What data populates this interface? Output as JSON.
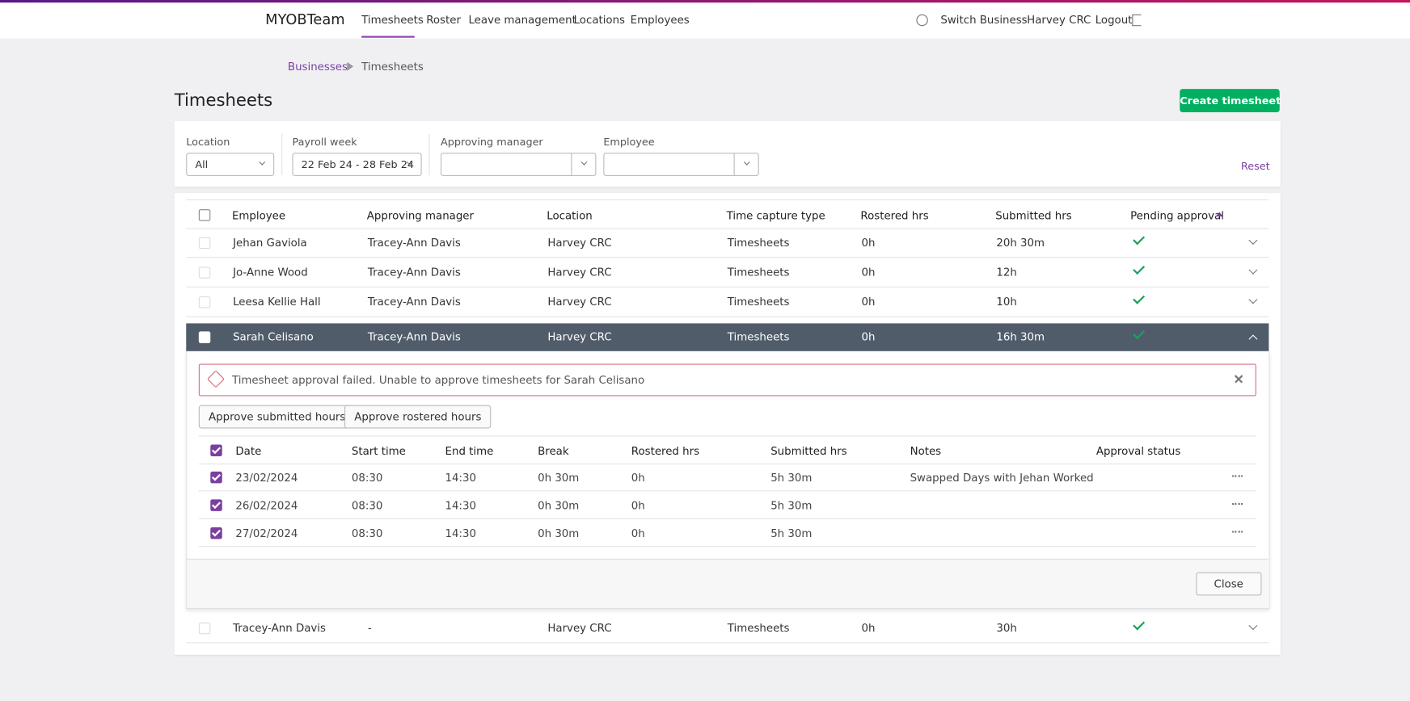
{
  "nav": {
    "brand": "MYOBTeam",
    "links": [
      "Timesheets",
      "Roster",
      "Leave management",
      "Locations",
      "Employees"
    ],
    "right": [
      "Switch Business",
      "Harvey CRC",
      "Logout"
    ]
  },
  "breadcrumb": [
    "Businesses",
    "Timesheets"
  ],
  "title": "Timesheets",
  "create_button": "Create timesheet",
  "filters": [
    {
      "label": "Location",
      "value": "All"
    },
    {
      "label": "Payroll week",
      "value": "22 Feb 24 - 28 Feb 24"
    },
    {
      "label": "Approving manager"
    },
    {
      "label": "Employee"
    }
  ],
  "reset": "Reset",
  "table": {
    "headers": [
      "Employee",
      "Approving manager",
      "Location",
      "Time capture type",
      "Rostered hrs",
      "Submitted hrs",
      "Pending approval"
    ],
    "rows": [
      [
        "Jehan Gaviola",
        "Tracey-Ann Davis",
        "Harvey CRC",
        "Timesheets",
        "0h",
        "20h 30m"
      ],
      [
        "Jo-Anne Wood",
        "Tracey-Ann Davis",
        "Harvey CRC",
        "Timesheets",
        "0h",
        "12h"
      ],
      [
        "Leesa Kellie Hall",
        "Tracey-Ann Davis",
        "Harvey CRC",
        "Timesheets",
        "0h",
        "10h"
      ],
      [
        "Sarah Celisano",
        "Tracey-Ann Davis",
        "Harvey CRC",
        "Timesheets",
        "0h",
        "16h 30m"
      ],
      [
        "Tracey-Ann Davis",
        "-",
        "Harvey CRC",
        "Timesheets",
        "0h",
        "30h"
      ]
    ]
  },
  "expanded": {
    "alert": "Timesheet approval failed. Unable to approve timesheets for Sarah Celisano",
    "buttons": [
      "Approve submitted hours",
      "Approve rostered hours"
    ],
    "headers": [
      "Date",
      "Start time",
      "End time",
      "Break",
      "Rostered hrs",
      "Submitted hrs",
      "Notes",
      "Approval status"
    ],
    "rows": [
      [
        "23/02/2024",
        "08:30",
        "14:30",
        "0h 30m",
        "0h",
        "5h 30m",
        "Swapped Days with Jehan Worked"
      ],
      [
        "26/02/2024",
        "08:30",
        "14:30",
        "0h 30m",
        "0h",
        "5h 30m"
      ],
      [
        "27/02/2024",
        "08:30",
        "14:30",
        "0h 30m",
        "0h",
        "5h 30m"
      ]
    ],
    "close": "Close"
  }
}
